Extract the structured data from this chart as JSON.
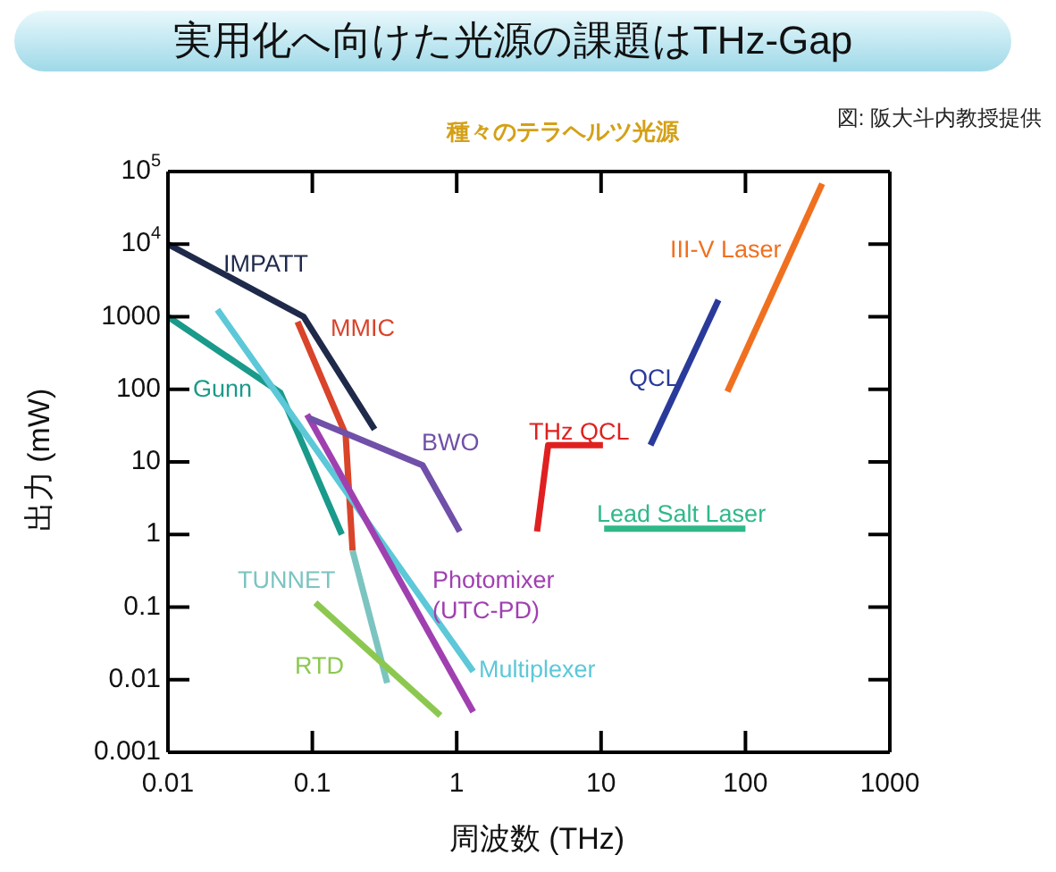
{
  "chart_data": {
    "type": "line",
    "title": "実用化へ向けた光源の課題はTHz-Gap",
    "subtitle": "種々のテラヘルツ光源",
    "annotations": [
      "図: 阪大斗内教授提供"
    ],
    "xlabel": "周波数 (THz)",
    "ylabel": "出力 (mW)",
    "log": "xy",
    "marker": "none",
    "line_style": "solid",
    "xlim": [
      0.01,
      1000
    ],
    "xticks": [
      0.01,
      0.1,
      1,
      10,
      100,
      1000
    ],
    "ylim": [
      0.001,
      100000
    ],
    "yticks": [
      0.001,
      0.01,
      0.1,
      1,
      10,
      100,
      1000,
      {
        "value": 10000,
        "label": "10$^{4}$"
      },
      {
        "value": 100000,
        "label": "10$^{5}$"
      }
    ],
    "series": [
      {
        "name": "IMPATT",
        "color": "#1f2a4a",
        "x": [
          0.01,
          0.087,
          0.27
        ],
        "values": [
          10000,
          1000,
          28
        ]
      },
      {
        "name": "MMIC",
        "color": "#d9442a",
        "x": [
          0.079,
          0.17,
          0.19
        ],
        "values": [
          850,
          24,
          0.6
        ]
      },
      {
        "name": "Gunn",
        "color": "#1a9a8a",
        "x": [
          0.01,
          0.06,
          0.16
        ],
        "values": [
          1000,
          90,
          1
        ]
      },
      {
        "name": "Multiplexer",
        "color": "#5cc8d8",
        "x": [
          0.022,
          1.3
        ],
        "values": [
          1250,
          0.013
        ]
      },
      {
        "name": "TUNNET",
        "color": "#7cc4c0",
        "x": [
          0.19,
          0.33
        ],
        "values": [
          0.6,
          0.009
        ]
      },
      {
        "name": "RTD",
        "color": "#8cc850",
        "x": [
          0.105,
          0.77
        ],
        "values": [
          0.115,
          0.0032
        ]
      },
      {
        "name": "Photomixer (UTC-PD)",
        "color": "#a040b0",
        "x": [
          0.092,
          1.3
        ],
        "values": [
          45,
          0.0036
        ]
      },
      {
        "name": "BWO",
        "color": "#7050a8",
        "x": [
          0.095,
          0.58,
          1.05
        ],
        "values": [
          40,
          9,
          1.1
        ]
      },
      {
        "name": "THz QCL",
        "color": "#e02020",
        "x": [
          3.6,
          4.3,
          10.3
        ],
        "values": [
          1.1,
          17,
          17
        ]
      },
      {
        "name": "QCL",
        "color": "#2a3a9a",
        "x": [
          22,
          65
        ],
        "values": [
          17,
          1700
        ]
      },
      {
        "name": "III-V Laser",
        "color": "#f07020",
        "x": [
          75,
          340
        ],
        "values": [
          93,
          68000
        ]
      },
      {
        "name": "Lead Salt Laser",
        "color": "#30b888",
        "x": [
          10.5,
          100
        ],
        "values": [
          1.2,
          1.2
        ]
      }
    ]
  }
}
